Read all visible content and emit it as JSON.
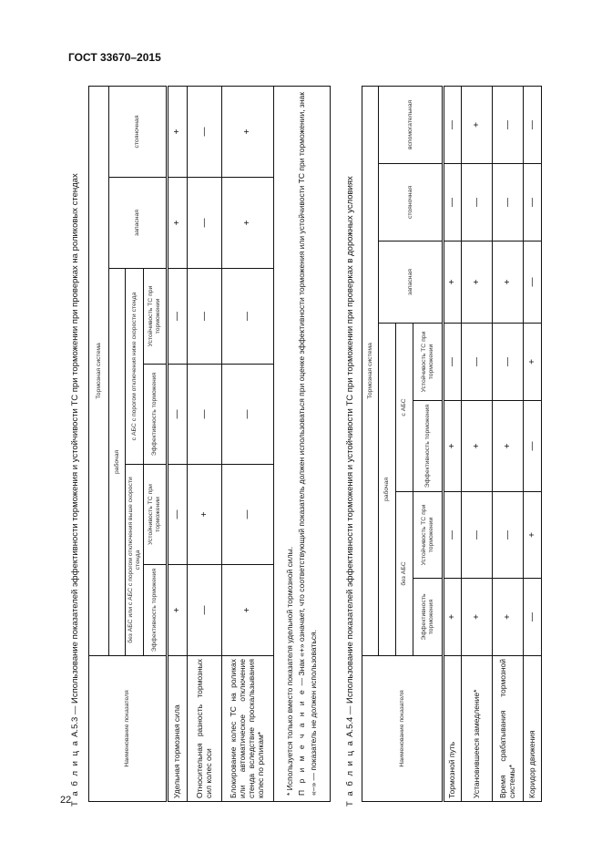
{
  "header": {
    "doc_code": "ГОСТ 33670–2015"
  },
  "page_number": "22",
  "table_a53": {
    "label": "Т а б л и ц а",
    "title": "А.5.3 — Использование показателей эффективности торможения и устойчивости ТС при торможении при проверках на роликовых стендах",
    "headers": {
      "name": "Наименование показателя",
      "system": "Тормозная система",
      "working": "рабочая",
      "group1": "без АБС или с АБС с порогом отключения выше скорости стенда",
      "group2": "с АБС с порогом отключения ниже скорости стенда",
      "efficiency": "Эффективность торможения",
      "stability": "Устойчивость ТС при торможении",
      "reserve": "запасная",
      "parking": "стояночная"
    },
    "rows": [
      {
        "name": "Удельная тормозная сила",
        "values": [
          "+",
          "—",
          "—",
          "—",
          "+",
          "+"
        ]
      },
      {
        "name": "Относительная разность тормозных сил колес оси",
        "values": [
          "—",
          "+",
          "—",
          "—",
          "—",
          "—"
        ]
      },
      {
        "name": "Блокирование колес ТС на роликах или автоматическое отключение стенда вследствие проскальзывания колес по роликам*",
        "values": [
          "+",
          "—",
          "—",
          "—",
          "+",
          "+"
        ]
      }
    ],
    "footnote": "* Используется только вместо показателя удельной тормозной силы.",
    "note_label": "П р и м е ч а н и е",
    "note_text": "— Знак «+» означает, что соответствующий показатель должен использоваться при оценке эффективности торможения или устойчивости ТС при торможении, знак «–» — показатель не должен использоваться."
  },
  "table_a54": {
    "label": "Т а б л и ц а",
    "title": "А.5.4 — Использование показателей эффективности торможения и устойчивости ТС при торможении при проверках в дорожных условиях",
    "headers": {
      "name": "Наименование показателя",
      "system": "Тормозная система",
      "working": "рабочая",
      "group1": "без АБС",
      "group2": "с АБС",
      "efficiency": "Эффективность торможения",
      "stability": "Устойчивость ТС при торможении",
      "reserve": "запасная",
      "parking": "стояночная",
      "auxiliary": "вспомогательная"
    },
    "rows": [
      {
        "name": "Тормозной путь",
        "values": [
          "+",
          "—",
          "+",
          "—",
          "+",
          "—",
          "—"
        ]
      },
      {
        "name": "Установившееся замедление*",
        "values": [
          "+",
          "—",
          "+",
          "—",
          "+",
          "—",
          "+"
        ]
      },
      {
        "name": "Время срабатывания тормозной системы*",
        "values": [
          "+",
          "—",
          "+",
          "—",
          "+",
          "—",
          "—"
        ]
      },
      {
        "name": "Коридор движения",
        "values": [
          "—",
          "+",
          "—",
          "+",
          "—",
          "—",
          "—"
        ]
      }
    ]
  }
}
